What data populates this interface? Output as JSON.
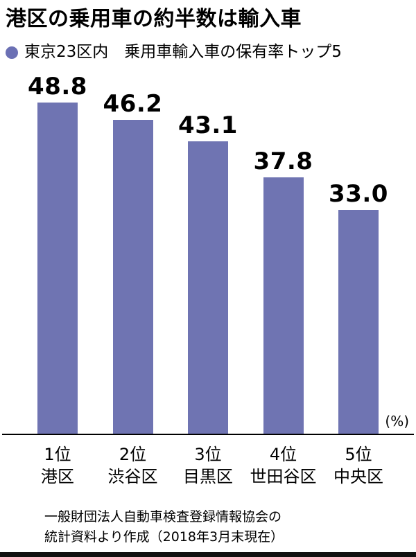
{
  "title": "港区の乗用車の約半数は輸入車",
  "subtitle": {
    "bullet_color": "#6b70b4",
    "text": "東京23区内　乗用車輸入車の保有率トップ5"
  },
  "chart_data": {
    "type": "bar",
    "categories": [
      "1位 港区",
      "2位 渋谷区",
      "3位 目黒区",
      "4位 世田谷区",
      "5位 中央区"
    ],
    "ranks": [
      "1位",
      "2位",
      "3位",
      "4位",
      "5位"
    ],
    "names": [
      "港区",
      "渋谷区",
      "目黒区",
      "世田谷区",
      "中央区"
    ],
    "values": [
      48.8,
      46.2,
      43.1,
      37.8,
      33.0
    ],
    "value_labels": [
      "48.8",
      "46.2",
      "43.1",
      "37.8",
      "33.0"
    ],
    "unit_label": "(%)",
    "title": "東京23区内　乗用車輸入車の保有率トップ5",
    "xlabel": "",
    "ylabel": "",
    "ylim": [
      0,
      50
    ],
    "bar_color": "#6f74b2",
    "grid": false,
    "legend": "none"
  },
  "source": {
    "line1": "一般財団法人自動車検査登録情報協会の",
    "line2": "統計資料より作成（2018年3月末現在）"
  }
}
